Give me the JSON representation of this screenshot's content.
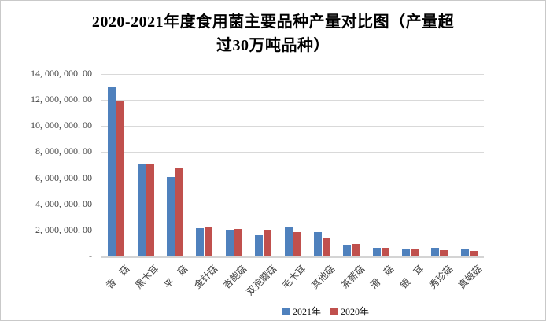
{
  "chart_data": {
    "type": "bar",
    "title": "2020-2021年度食用菌主要品种产量对比图（产量超过30万吨品种）",
    "title_lines": [
      "2020-2021年度食用菌主要品种产量对比图（产量超",
      "过30万吨品种）"
    ],
    "categories": [
      "香　菇",
      "黑木耳",
      "平　菇",
      "金针菇",
      "杏鲍菇",
      "双孢蘑菇",
      "毛木耳",
      "其他菇",
      "茶薪菇",
      "滑　菇",
      "银　耳",
      "秀珍菇",
      "真姬菇"
    ],
    "series": [
      {
        "name": "2021年",
        "color": "#4F81BD",
        "values": [
          12960000,
          7070000,
          6100000,
          2160000,
          2060000,
          1630000,
          2230000,
          1870000,
          920000,
          650000,
          550000,
          640000,
          550000
        ]
      },
      {
        "name": "2020年",
        "color": "#C0504D",
        "values": [
          11860000,
          7060000,
          6780000,
          2290000,
          2120000,
          2070000,
          1900000,
          1460000,
          940000,
          670000,
          530000,
          460000,
          420000
        ]
      }
    ],
    "ylabel": "",
    "xlabel": "",
    "ylim": [
      0,
      14000000
    ],
    "ytick_step": 2000000,
    "ytick_labels_top_to_bottom": [
      "14, 000, 000. 00",
      "12, 000, 000. 00",
      "10, 000, 000. 00",
      "8, 000, 000. 00",
      "6, 000, 000. 00",
      "4, 000, 000. 00",
      "2, 000, 000. 00",
      "-"
    ],
    "grid": true,
    "legend_position": "bottom-center"
  },
  "colors": {
    "series_2021": "#4F81BD",
    "series_2020": "#C0504D",
    "gridline": "#d9d9d9",
    "axis_text": "#404040",
    "title_text": "#000000",
    "border": "#c9c9c9"
  }
}
